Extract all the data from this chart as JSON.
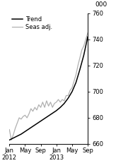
{
  "title": "",
  "ylabel": "000",
  "ylim": [
    660,
    760
  ],
  "yticks": [
    660,
    680,
    700,
    720,
    740,
    760
  ],
  "xlabel_ticks": [
    0,
    4,
    8,
    12,
    16,
    20
  ],
  "xlabel_labels": [
    "Jan\n2012",
    "May",
    "Sep",
    "Jan\n2013",
    "May",
    "Sep"
  ],
  "trend_color": "#000000",
  "seas_color": "#b0b0b0",
  "legend_entries": [
    "Trend",
    "Seas adj."
  ],
  "trend_x": [
    0,
    1,
    2,
    3,
    4,
    5,
    6,
    7,
    8,
    9,
    10,
    11,
    12,
    13,
    14,
    15,
    16,
    17,
    18,
    19,
    20
  ],
  "trend_y": [
    663,
    664.5,
    666,
    667.5,
    669.5,
    671.5,
    673.5,
    675.5,
    677.5,
    679.5,
    681.5,
    683.5,
    685.5,
    688,
    691,
    695,
    700,
    707,
    717,
    728,
    742
  ],
  "seas_x": [
    0,
    0.5,
    1,
    1.5,
    2,
    2.5,
    3,
    3.5,
    4,
    4.5,
    5,
    5.5,
    6,
    6.5,
    7,
    7.5,
    8,
    8.5,
    9,
    9.5,
    10,
    10.5,
    11,
    11.5,
    12,
    12.5,
    13,
    13.5,
    14,
    14.5,
    15,
    15.5,
    16,
    16.5,
    17,
    17.5,
    18,
    18.5,
    19,
    19.5,
    20
  ],
  "seas_y": [
    671,
    663,
    667,
    672,
    676,
    680,
    679,
    681,
    682,
    680,
    683,
    687,
    685,
    688,
    686,
    690,
    688,
    692,
    688,
    693,
    689,
    692,
    688,
    691,
    692,
    694,
    692,
    694,
    693,
    697,
    697,
    701,
    703,
    708,
    713,
    720,
    726,
    732,
    735,
    740,
    745
  ]
}
